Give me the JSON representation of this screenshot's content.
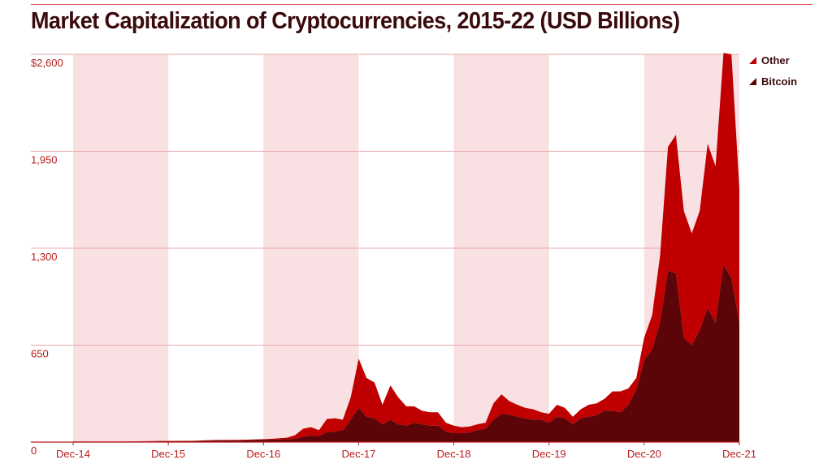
{
  "title": "Market Capitalization of Cryptocurrencies, 2015-22 (USD Billions)",
  "colors": {
    "other": "#c00000",
    "bitcoin": "#5c0508",
    "band": "#f9e0e2",
    "grid": "#e9a9ab",
    "axis": "#b71c1c",
    "title": "#3a0a0c"
  },
  "chart_data": {
    "type": "area",
    "stacked": true,
    "title": "Market Capitalization of Cryptocurrencies, 2015-22 (USD Billions)",
    "xlabel": "",
    "ylabel": "",
    "xlim": [
      "2014-12",
      "2021-12"
    ],
    "ylim": [
      0,
      2600
    ],
    "yticks": [
      0,
      650,
      1300,
      1950,
      2600
    ],
    "ytick_labels": [
      "0",
      "650",
      "1,300",
      "1,950",
      "$2,600"
    ],
    "xticks": [
      "2014-12",
      "2015-12",
      "2016-12",
      "2017-12",
      "2018-12",
      "2019-12",
      "2020-12",
      "2021-12"
    ],
    "xtick_labels": [
      "Dec-14",
      "Dec-15",
      "Dec-16",
      "Dec-17",
      "Dec-18",
      "Dec-19",
      "Dec-20",
      "Dec-21"
    ],
    "grid": true,
    "legend": "top-right",
    "x": [
      "2014-12",
      "2015-03",
      "2015-06",
      "2015-09",
      "2015-12",
      "2016-03",
      "2016-06",
      "2016-09",
      "2016-12",
      "2017-01",
      "2017-02",
      "2017-03",
      "2017-04",
      "2017-05",
      "2017-06",
      "2017-07",
      "2017-08",
      "2017-09",
      "2017-10",
      "2017-11",
      "2017-12",
      "2018-01",
      "2018-02",
      "2018-03",
      "2018-04",
      "2018-05",
      "2018-06",
      "2018-07",
      "2018-08",
      "2018-09",
      "2018-10",
      "2018-11",
      "2018-12",
      "2019-01",
      "2019-02",
      "2019-03",
      "2019-04",
      "2019-05",
      "2019-06",
      "2019-07",
      "2019-08",
      "2019-09",
      "2019-10",
      "2019-11",
      "2019-12",
      "2020-01",
      "2020-02",
      "2020-03",
      "2020-04",
      "2020-05",
      "2020-06",
      "2020-07",
      "2020-08",
      "2020-09",
      "2020-10",
      "2020-11",
      "2020-12",
      "2021-01",
      "2021-02",
      "2021-03",
      "2021-04",
      "2021-05",
      "2021-06",
      "2021-07",
      "2021-08",
      "2021-09",
      "2021-10",
      "2021-11",
      "2021-12"
    ],
    "series": [
      {
        "name": "Bitcoin",
        "values": [
          4,
          3,
          3,
          4,
          6,
          6,
          10,
          10,
          15,
          16,
          18,
          20,
          22,
          35,
          45,
          40,
          65,
          70,
          80,
          150,
          230,
          170,
          160,
          120,
          150,
          120,
          110,
          130,
          120,
          110,
          110,
          70,
          60,
          60,
          65,
          80,
          90,
          150,
          190,
          185,
          170,
          160,
          150,
          150,
          130,
          170,
          160,
          120,
          160,
          170,
          180,
          210,
          210,
          200,
          250,
          350,
          550,
          620,
          800,
          1150,
          1130,
          700,
          650,
          750,
          900,
          800,
          1190,
          1100,
          800
        ]
      },
      {
        "name": "Other",
        "values": [
          1,
          1,
          1,
          2,
          2,
          3,
          4,
          5,
          5,
          6,
          8,
          10,
          25,
          55,
          55,
          40,
          90,
          90,
          70,
          150,
          330,
          260,
          240,
          130,
          230,
          180,
          130,
          110,
          90,
          90,
          90,
          60,
          50,
          40,
          40,
          40,
          40,
          110,
          130,
          90,
          80,
          70,
          70,
          50,
          60,
          80,
          70,
          50,
          60,
          80,
          80,
          80,
          130,
          140,
          110,
          80,
          150,
          230,
          450,
          830,
          930,
          850,
          750,
          800,
          1100,
          1050,
          1420,
          1500,
          900
        ]
      }
    ]
  }
}
